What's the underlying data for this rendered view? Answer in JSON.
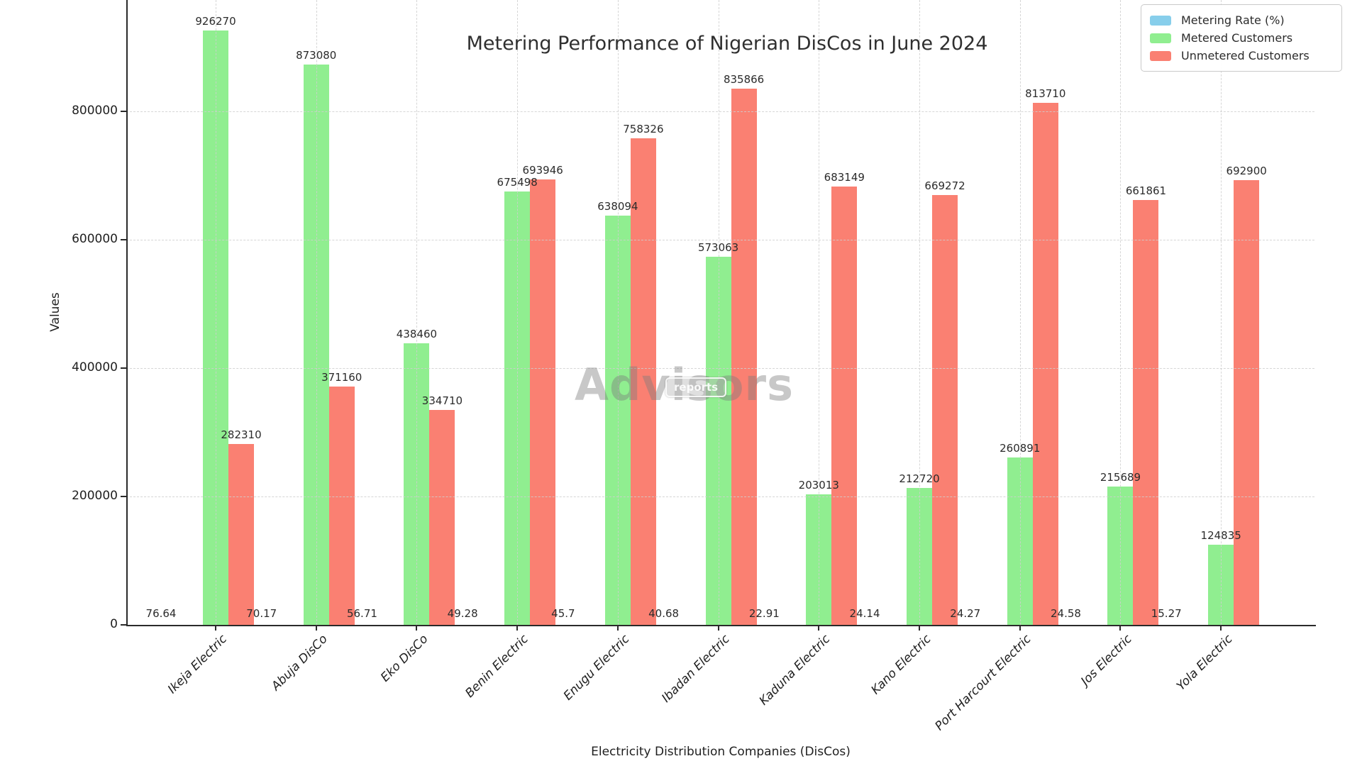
{
  "title": "Metering Performance of Nigerian DisCos in June 2024",
  "watermark": {
    "text": "Advisors",
    "badge": "reports"
  },
  "legend": [
    {
      "label": "Metering Rate (%)",
      "color": "#87CEEB"
    },
    {
      "label": "Metered Customers",
      "color": "#90EE90"
    },
    {
      "label": "Unmetered Customers",
      "color": "#FA8072"
    }
  ],
  "chart_data": {
    "type": "bar",
    "title": "Metering Performance of Nigerian DisCos in June 2024",
    "xlabel": "Electricity Distribution Companies (DisCos)",
    "ylabel": "Values",
    "categories": [
      "Ikeja Electric",
      "Abuja DisCo",
      "Eko DisCo",
      "Benin Electric",
      "Enugu Electric",
      "Ibadan Electric",
      "Kaduna Electric",
      "Kano Electric",
      "Port Harcourt Electric",
      "Jos Electric",
      "Yola Electric"
    ],
    "series": [
      {
        "name": "Metering Rate (%)",
        "color": "#87CEEB",
        "values": [
          76.64,
          70.17,
          56.71,
          49.28,
          45.7,
          40.68,
          22.91,
          24.14,
          24.27,
          24.58,
          15.27
        ]
      },
      {
        "name": "Metered Customers",
        "color": "#90EE90",
        "values": [
          926270,
          873080,
          438460,
          675498,
          638094,
          573063,
          203013,
          212720,
          260891,
          215689,
          124835
        ]
      },
      {
        "name": "Unmetered Customers",
        "color": "#FA8072",
        "values": [
          282310,
          371160,
          334710,
          693946,
          758326,
          835866,
          683149,
          669272,
          813710,
          661861,
          692900
        ]
      }
    ],
    "yticks": [
      0,
      200000,
      400000,
      600000,
      800000
    ],
    "ylim": [
      0,
      973000
    ],
    "grid": "dashed",
    "legend_position": "upper right"
  }
}
